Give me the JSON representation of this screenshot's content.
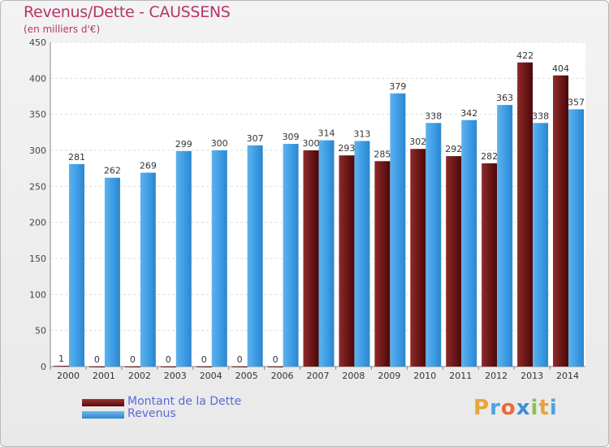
{
  "header": {
    "title": "Revenus/Dette - CAUSSENS",
    "subtitle": "(en milliers d'€)"
  },
  "chart_data": {
    "type": "bar",
    "title": "Revenus/Dette - CAUSSENS",
    "subtitle": "(en milliers d'€)",
    "xlabel": "",
    "ylabel": "",
    "ylim": [
      0,
      450
    ],
    "yticks": [
      0,
      50,
      100,
      150,
      200,
      250,
      300,
      350,
      400,
      450
    ],
    "grid": true,
    "legend_position": "bottom-left",
    "categories": [
      "2000",
      "2001",
      "2002",
      "2003",
      "2004",
      "2005",
      "2006",
      "2007",
      "2008",
      "2009",
      "2010",
      "2011",
      "2012",
      "2013",
      "2014"
    ],
    "series": [
      {
        "name": "Montant de la Dette",
        "color": "#7a1c1c",
        "values": [
          1,
          0,
          0,
          0,
          0,
          0,
          0,
          300,
          293,
          285,
          302,
          292,
          282,
          422,
          404
        ]
      },
      {
        "name": "Revenus",
        "color": "#3f9ee6",
        "values": [
          281,
          262,
          269,
          299,
          300,
          307,
          309,
          314,
          313,
          379,
          338,
          342,
          363,
          338,
          357
        ]
      }
    ]
  },
  "legend": {
    "items": [
      {
        "label": "Montant de la Dette",
        "color": "#6b1414"
      },
      {
        "label": "Revenus",
        "color": "#3f9ee6"
      }
    ]
  },
  "brand": {
    "letters": [
      "P",
      "r",
      "o",
      "x",
      "i",
      "t",
      "i"
    ],
    "colors": [
      "#e8a43a",
      "#4aa3df",
      "#e86b3a",
      "#3a8fd8",
      "#8bc34a",
      "#e8a43a",
      "#4aa3df"
    ]
  }
}
